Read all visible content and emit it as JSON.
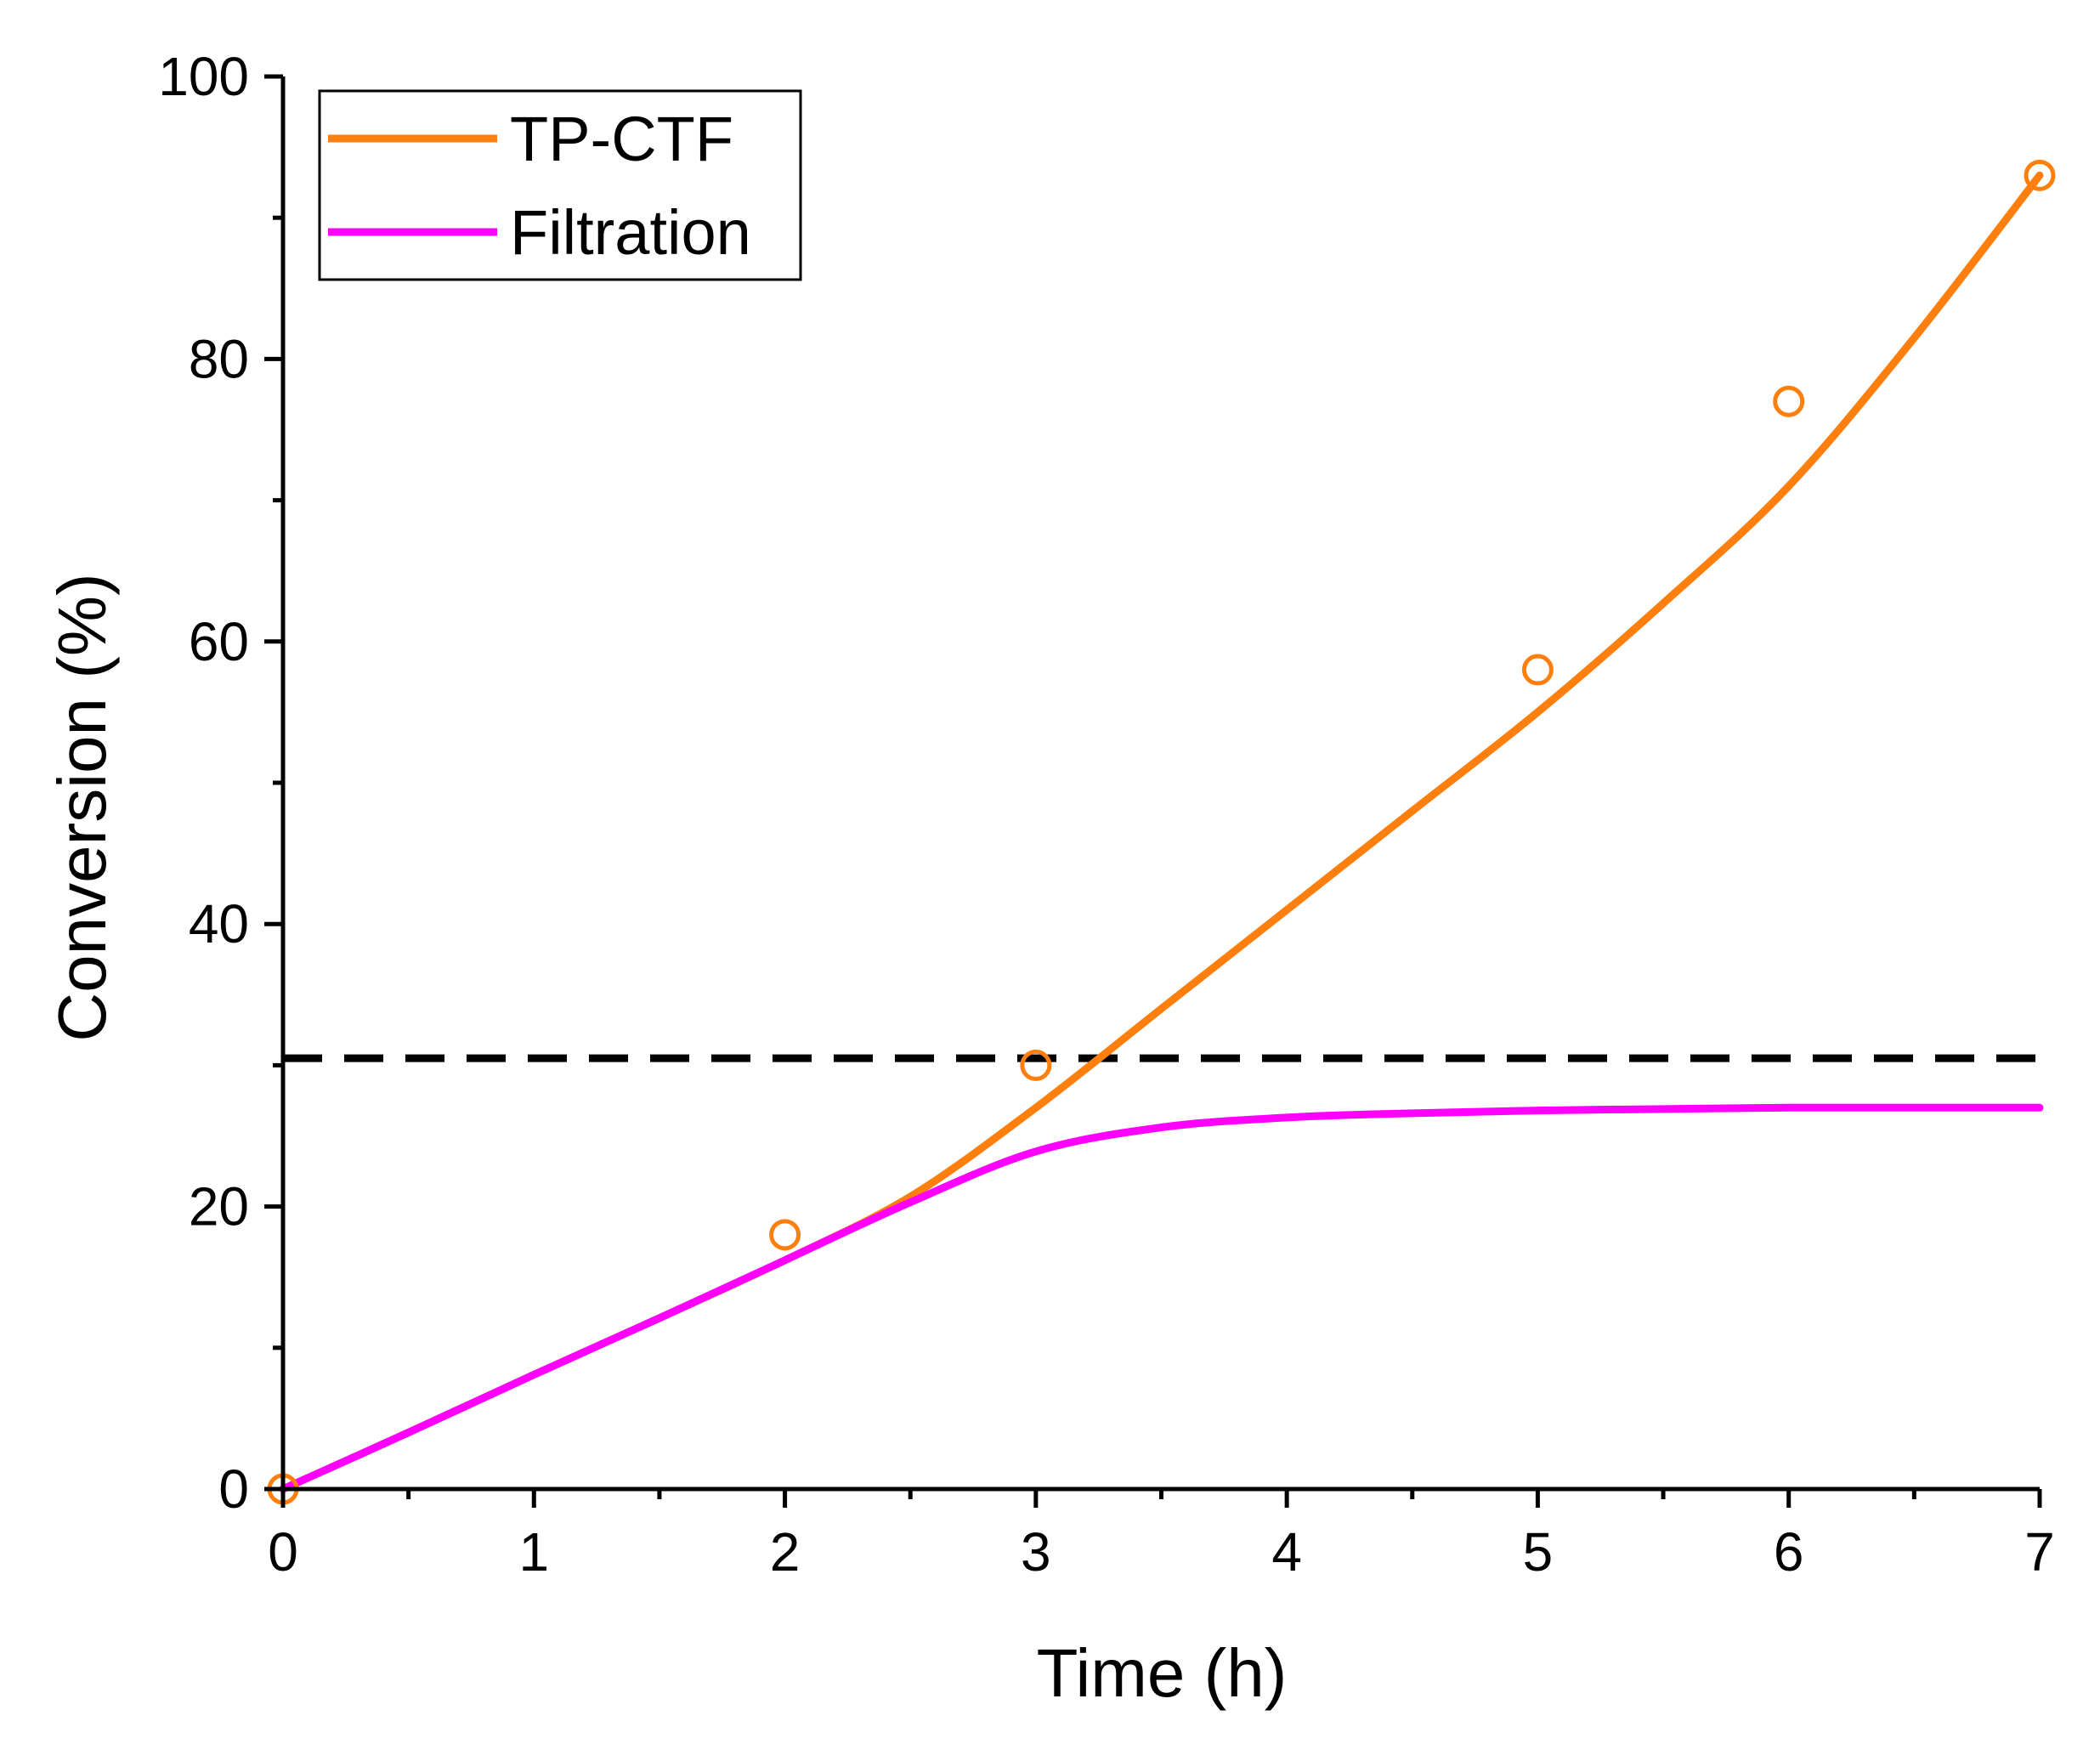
{
  "chart_data": {
    "type": "line",
    "xlabel": "Time (h)",
    "ylabel": "Conversion (%)",
    "xlim": [
      0,
      7
    ],
    "ylim": [
      0,
      100
    ],
    "x_ticks": [
      0,
      1,
      2,
      3,
      4,
      5,
      6,
      7
    ],
    "y_ticks": [
      0,
      20,
      40,
      60,
      80,
      100
    ],
    "grid": false,
    "legend_position": "top-left",
    "series": [
      {
        "name": "TP-CTF",
        "color": "#ff7f0e",
        "style": "solid",
        "x": [
          0,
          0.5,
          1,
          1.5,
          2,
          2.5,
          3,
          3.5,
          4,
          4.5,
          5,
          5.5,
          6,
          6.5,
          7
        ],
        "values": [
          0,
          4.0,
          8.1,
          12.1,
          16.2,
          20.7,
          27.0,
          34.0,
          41.0,
          48.0,
          55.0,
          62.7,
          71.0,
          81.5,
          93.0
        ],
        "markers": {
          "x": [
            0,
            2,
            3,
            5,
            6,
            7
          ],
          "values": [
            0,
            18,
            30,
            58,
            77,
            93
          ]
        }
      },
      {
        "name": "Filtration",
        "color": "#ff00ff",
        "style": "solid",
        "x": [
          0,
          0.5,
          1,
          1.5,
          2,
          2.5,
          3,
          3.5,
          4,
          4.5,
          5,
          5.5,
          6,
          6.5,
          7
        ],
        "values": [
          0,
          4.0,
          8.1,
          12.1,
          16.2,
          20.3,
          23.9,
          25.6,
          26.3,
          26.6,
          26.8,
          26.9,
          27.0,
          27.0,
          27.0
        ]
      }
    ],
    "reference_line": {
      "type": "horizontal",
      "y": 30.5,
      "color": "#000000",
      "style": "dashed"
    }
  }
}
